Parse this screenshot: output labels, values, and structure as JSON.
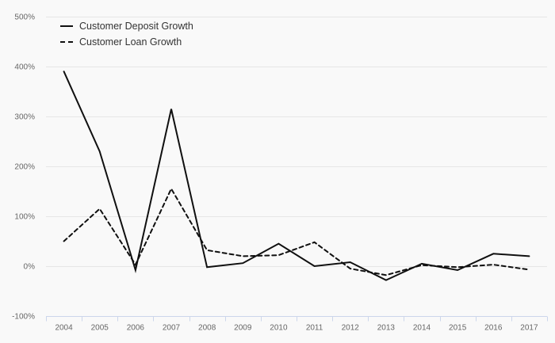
{
  "chart_data": {
    "type": "line",
    "title": "",
    "xlabel": "",
    "ylabel": "",
    "unit": "%",
    "categories": [
      "2004",
      "2005",
      "2006",
      "2007",
      "2008",
      "2009",
      "2010",
      "2011",
      "2012",
      "2013",
      "2014",
      "2015",
      "2016",
      "2017"
    ],
    "series": [
      {
        "name": "Customer Deposit Growth",
        "style": "solid",
        "values": [
          390,
          230,
          -8,
          315,
          -2,
          6,
          45,
          0,
          8,
          -28,
          5,
          -8,
          25,
          20
        ]
      },
      {
        "name": "Customer Loan Growth",
        "style": "dashed",
        "values": [
          50,
          115,
          3,
          155,
          32,
          20,
          22,
          48,
          -5,
          -18,
          2,
          -2,
          3,
          -7
        ]
      }
    ],
    "ylim": [
      -100,
      500
    ],
    "y_ticks": [
      {
        "value": 500,
        "label": "500%"
      },
      {
        "value": 400,
        "label": "400%"
      },
      {
        "value": 300,
        "label": "300%"
      },
      {
        "value": 200,
        "label": "200%"
      },
      {
        "value": 100,
        "label": "100%"
      },
      {
        "value": 0,
        "label": "0%"
      },
      {
        "value": -100,
        "label": "-100%"
      }
    ],
    "grid": true,
    "legend_position": "top-left",
    "colors": {
      "series_line": "#101010",
      "gridline": "#e6e6e6",
      "axis_line": "#ccd6eb",
      "axis_label": "#666666",
      "legend_text": "#333333",
      "background": "#f9f9f9"
    }
  }
}
